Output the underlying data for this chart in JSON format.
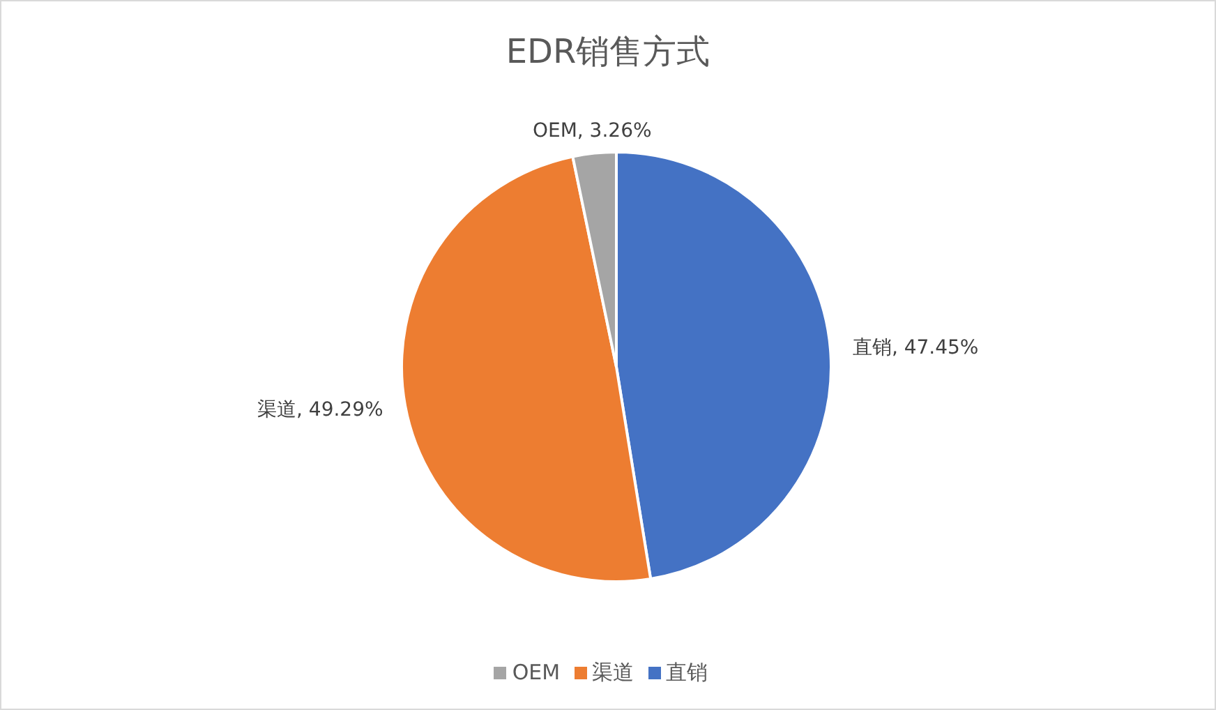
{
  "chart_data": {
    "type": "pie",
    "title": "EDR销售方式",
    "categories": [
      "直销",
      "渠道",
      "OEM"
    ],
    "values": [
      47.45,
      49.29,
      3.26
    ],
    "colors": [
      "#4472c4",
      "#ed7d31",
      "#a5a5a5"
    ],
    "value_labels": [
      "直销, 47.45%",
      "渠道, 49.29%",
      "OEM, 3.26%"
    ],
    "legend": "bottom"
  }
}
